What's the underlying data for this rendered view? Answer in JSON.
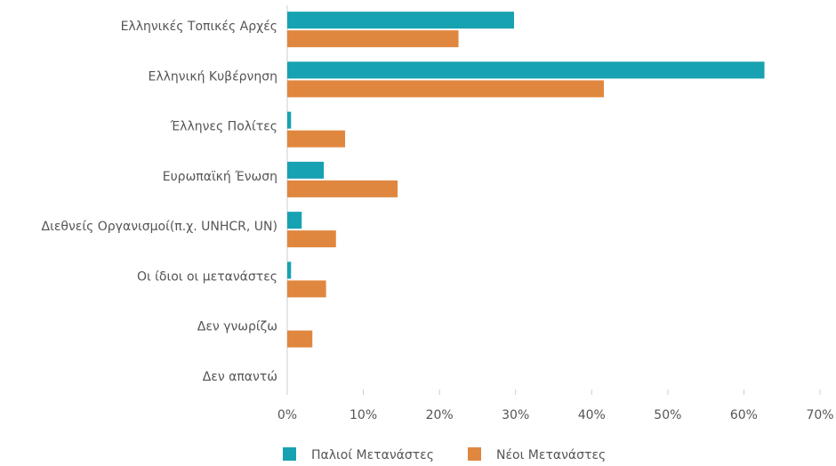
{
  "chart_data": {
    "type": "hbar",
    "categories": [
      "Ελληνικές Τοπικές Αρχές",
      "Ελληνική Κυβέρνηση",
      "Έλληνες Πολίτες",
      "Ευρωπαϊκή Ένωση",
      "Διεθνείς Οργανισμοί(π.χ. UNHCR, UN)",
      "Οι ίδιοι οι μετανάστες",
      "Δεν γνωρίζω",
      "Δεν απαντώ"
    ],
    "series": [
      {
        "name": "Παλιοί Μετανάστες",
        "color": "#17a2b1",
        "values": [
          29.8,
          62.7,
          0.5,
          4.8,
          1.9,
          0.5,
          0,
          0
        ]
      },
      {
        "name": "Νέοι Μετανάστες",
        "color": "#e0873f",
        "values": [
          22.5,
          41.6,
          7.6,
          14.5,
          6.4,
          5.1,
          3.3,
          0
        ]
      }
    ],
    "xlim": [
      0,
      70
    ],
    "xticks": [
      {
        "value": 0,
        "label": "0%"
      },
      {
        "value": 10,
        "label": "10%"
      },
      {
        "value": 20,
        "label": "20%"
      },
      {
        "value": 30,
        "label": "30%"
      },
      {
        "value": 40,
        "label": "40%"
      },
      {
        "value": 50,
        "label": "50%"
      },
      {
        "value": 60,
        "label": "60%"
      },
      {
        "value": 70,
        "label": "70%"
      }
    ],
    "grid": false,
    "legend": "bottom"
  }
}
